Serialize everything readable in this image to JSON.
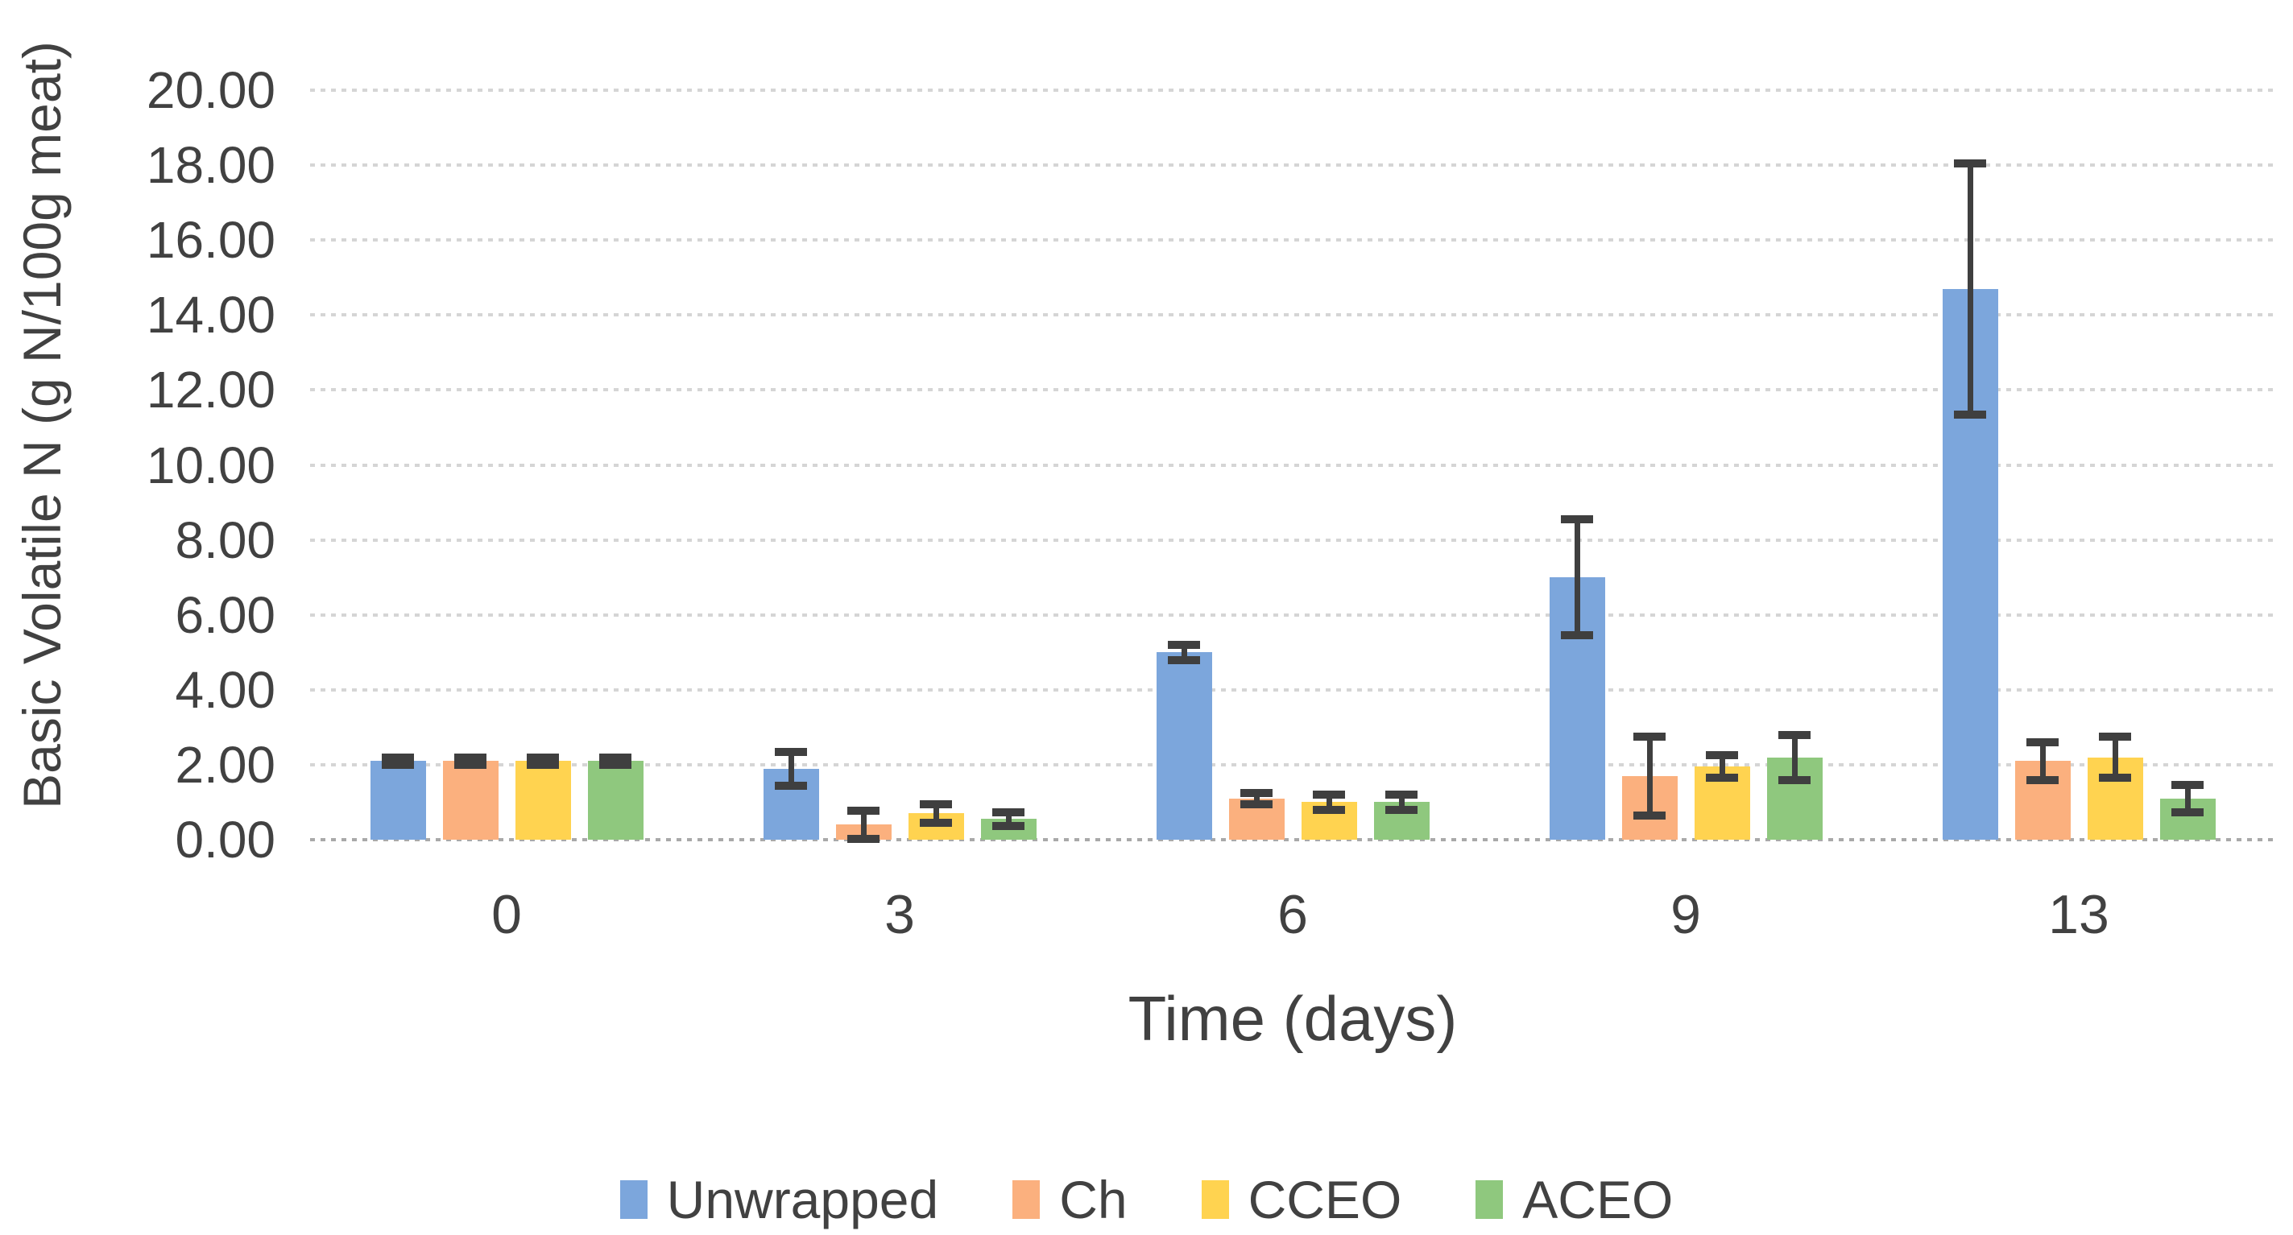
{
  "chart_data": {
    "type": "bar",
    "title": "",
    "xlabel": "Time (days)",
    "ylabel": "Basic Volatile N (g N/100g meat)",
    "categories": [
      "0",
      "3",
      "6",
      "9",
      "13"
    ],
    "series": [
      {
        "name": "Unwrapped",
        "color": "#7CA6DC",
        "values": [
          2.1,
          1.9,
          5.0,
          7.0,
          14.7
        ],
        "errors": [
          0.1,
          0.45,
          0.2,
          1.55,
          3.35
        ]
      },
      {
        "name": "Ch",
        "color": "#FBB07E",
        "values": [
          2.1,
          0.4,
          1.1,
          1.7,
          2.1
        ],
        "errors": [
          0.1,
          0.38,
          0.15,
          1.05,
          0.5
        ]
      },
      {
        "name": "CCEO",
        "color": "#FFD350",
        "values": [
          2.1,
          0.7,
          1.0,
          1.95,
          2.2
        ],
        "errors": [
          0.1,
          0.25,
          0.2,
          0.3,
          0.55
        ]
      },
      {
        "name": "ACEO",
        "color": "#8FC87E",
        "values": [
          2.1,
          0.55,
          1.0,
          2.2,
          1.1
        ],
        "errors": [
          0.1,
          0.18,
          0.2,
          0.6,
          0.37
        ]
      }
    ],
    "ylim": [
      0,
      20
    ],
    "ytick_step": 2,
    "ytick_labels": [
      "0.00",
      "2.00",
      "4.00",
      "6.00",
      "8.00",
      "10.00",
      "12.00",
      "14.00",
      "16.00",
      "18.00",
      "20.00"
    ],
    "grid": true,
    "legend_position": "bottom",
    "gridline_color": "#D5D5D5",
    "axis_line_color": "#A9A9A9",
    "error_bar_color": "#3F3F3F",
    "text_color": "#414141"
  }
}
